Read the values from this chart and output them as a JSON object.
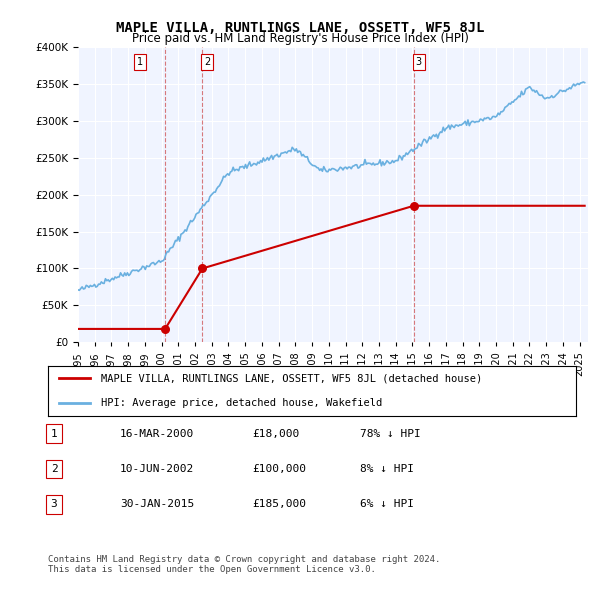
{
  "title": "MAPLE VILLA, RUNTLINGS LANE, OSSETT, WF5 8JL",
  "subtitle": "Price paid vs. HM Land Registry's House Price Index (HPI)",
  "ylabel_ticks": [
    "£0",
    "£50K",
    "£100K",
    "£150K",
    "£200K",
    "£250K",
    "£300K",
    "£350K",
    "£400K"
  ],
  "ylim": [
    0,
    400000
  ],
  "xlim_start": 1995.0,
  "xlim_end": 2025.5,
  "hpi_color": "#6ab0e0",
  "price_color": "#cc0000",
  "background_chart": "#f0f4ff",
  "grid_color": "#ffffff",
  "purchases": [
    {
      "date_num": 2000.21,
      "price": 18000,
      "label": "1"
    },
    {
      "date_num": 2002.44,
      "price": 100000,
      "label": "2"
    },
    {
      "date_num": 2015.08,
      "price": 185000,
      "label": "3"
    }
  ],
  "legend_entries": [
    {
      "label": "MAPLE VILLA, RUNTLINGS LANE, OSSETT, WF5 8JL (detached house)",
      "color": "#cc0000"
    },
    {
      "label": "HPI: Average price, detached house, Wakefield",
      "color": "#6ab0e0"
    }
  ],
  "table_rows": [
    {
      "num": "1",
      "date": "16-MAR-2000",
      "price": "£18,000",
      "pct": "78% ↓ HPI"
    },
    {
      "num": "2",
      "date": "10-JUN-2002",
      "price": "£100,000",
      "pct": "8% ↓ HPI"
    },
    {
      "num": "3",
      "date": "30-JAN-2015",
      "price": "£185,000",
      "pct": "6% ↓ HPI"
    }
  ],
  "footer": "Contains HM Land Registry data © Crown copyright and database right 2024.\nThis data is licensed under the Open Government Licence v3.0.",
  "vline_dates": [
    2000.21,
    2002.44,
    2015.08
  ],
  "vline_color": "#cc4444"
}
